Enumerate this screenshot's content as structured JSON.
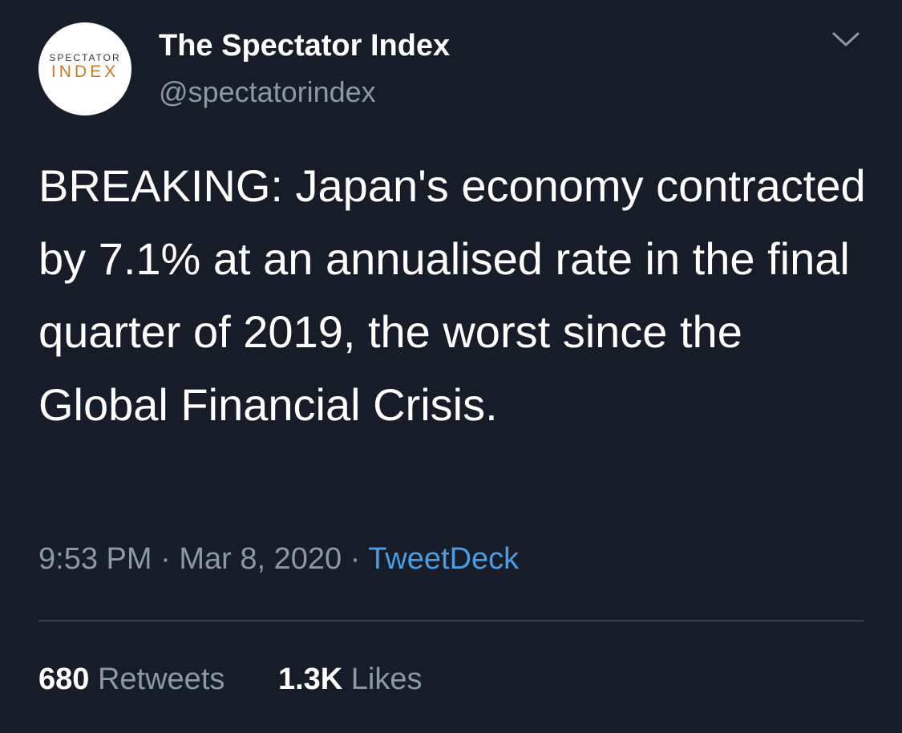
{
  "author": {
    "display_name": "The Spectator Index",
    "handle": "@spectatorindex",
    "avatar_logo_top": "SPECTATOR",
    "avatar_logo_bottom": "INDEX"
  },
  "tweet": {
    "text": "BREAKING: Japan's economy contracted by 7.1% at an annualised rate in the final quarter of 2019, the worst since the Global Financial Crisis.",
    "time": "9:53 PM",
    "date": "Mar 8, 2020",
    "separator": "·",
    "source": "TweetDeck"
  },
  "stats": {
    "retweets_count": "680",
    "retweets_label": "Retweets",
    "likes_count": "1.3K",
    "likes_label": "Likes"
  },
  "icons": {
    "menu": "chevron-down-icon"
  },
  "colors": {
    "background": "#161d28",
    "text_primary": "#ffffff",
    "text_secondary": "#8b98a5",
    "link": "#4a9de3",
    "divider": "#37424f",
    "logo_accent": "#c87a2a"
  }
}
